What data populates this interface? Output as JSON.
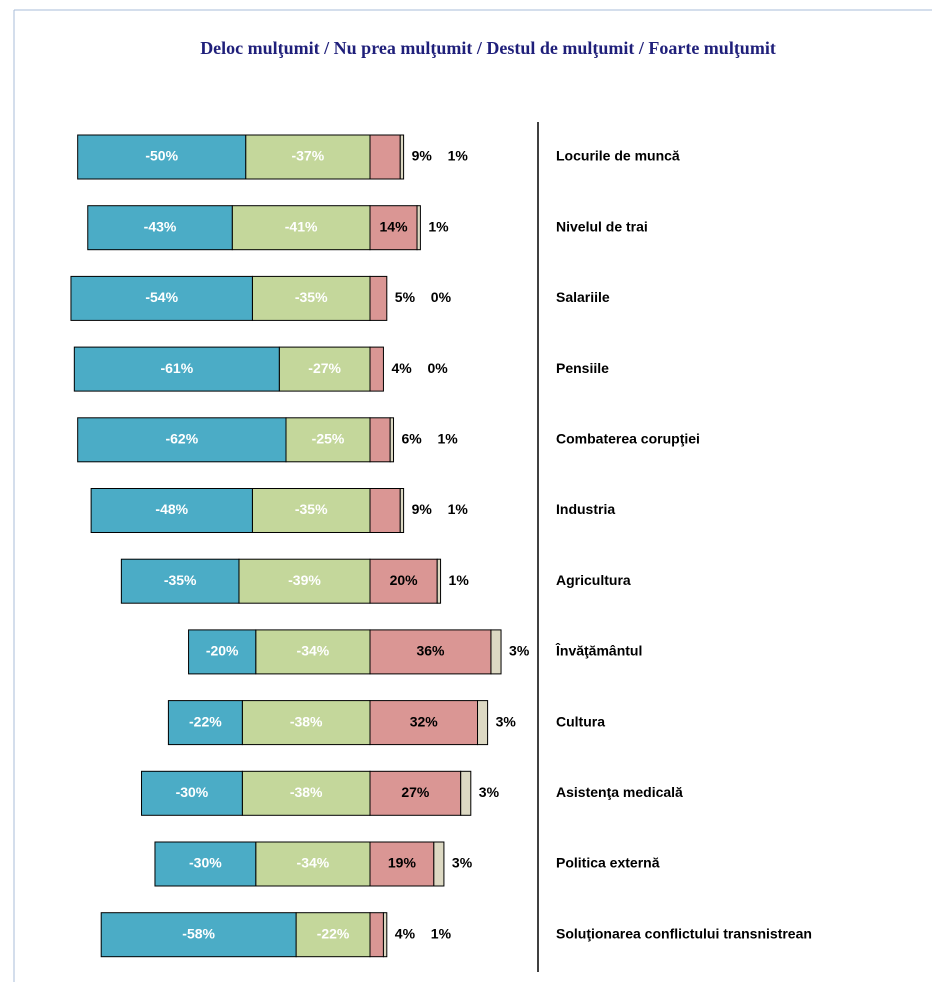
{
  "chart_data": {
    "type": "diverging-bar",
    "title": "Deloc mulţumit / Nu prea mulţumit / Destul de mulţumit / Foarte mulţumit",
    "categories": [
      "Locurile de muncă",
      "Nivelul de trai",
      "Salariile",
      "Pensiile",
      "Combaterea corupţiei",
      "Industria",
      "Agricultura",
      "Învăţământul",
      "Cultura",
      "Asistenţa medicală",
      "Politica externă",
      "Soluţionarea conflictului transnistrean"
    ],
    "series": [
      {
        "color": "#4bacc6",
        "values": [
          -50,
          -43,
          -54,
          -61,
          -62,
          -48,
          -35,
          -20,
          -22,
          -30,
          -30,
          -58
        ],
        "value_labels": [
          "-50%",
          "-43%",
          "-54%",
          "-61%",
          "-62%",
          "-48%",
          "-35%",
          "-20%",
          "-22%",
          "-30%",
          "-30%",
          "-58%"
        ]
      },
      {
        "color": "#c4d79b",
        "values": [
          -37,
          -41,
          -35,
          -27,
          -25,
          -35,
          -39,
          -34,
          -38,
          -38,
          -34,
          -22
        ],
        "value_labels": [
          "-37%",
          "-41%",
          "-35%",
          "-27%",
          "-25%",
          "-35%",
          "-39%",
          "-34%",
          "-38%",
          "-38%",
          "-34%",
          "-22%"
        ]
      },
      {
        "color": "#da9694",
        "values": [
          9,
          14,
          5,
          4,
          6,
          9,
          20,
          36,
          32,
          27,
          19,
          4
        ],
        "value_labels": [
          "9%",
          "14%",
          "5%",
          "4%",
          "6%",
          "9%",
          "20%",
          "36%",
          "32%",
          "27%",
          "19%",
          "4%"
        ]
      },
      {
        "color": "#ddd9c3",
        "values": [
          1,
          1,
          0,
          0,
          1,
          1,
          1,
          3,
          3,
          3,
          3,
          1
        ],
        "value_labels": [
          "1%",
          "1%",
          "0%",
          "0%",
          "1%",
          "1%",
          "1%",
          "3%",
          "3%",
          "3%",
          "3%",
          "1%"
        ]
      }
    ]
  }
}
